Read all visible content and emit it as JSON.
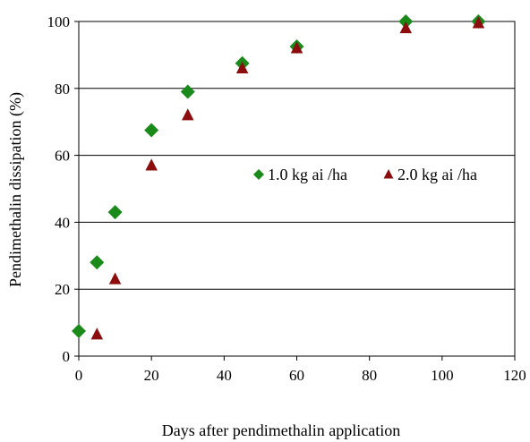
{
  "chart_data": {
    "type": "scatter",
    "title": "",
    "xlabel": "Days after pendimethalin application",
    "ylabel": "Pendimethalin dissipation (%)",
    "xlim": [
      0,
      120
    ],
    "ylim": [
      0,
      100
    ],
    "xticks": [
      0,
      20,
      40,
      60,
      80,
      100,
      120
    ],
    "yticks": [
      0,
      20,
      40,
      60,
      80,
      100
    ],
    "grid": "horizontal",
    "legend_position": "center-right",
    "series": [
      {
        "name": "1.0 kg ai /ha",
        "marker": "diamond",
        "color": "#1a8a1a",
        "x": [
          0,
          5,
          10,
          20,
          30,
          45,
          60,
          90,
          110
        ],
        "y": [
          7.5,
          28,
          43,
          67.5,
          79,
          87.5,
          92.5,
          100,
          100
        ]
      },
      {
        "name": "2.0 kg ai /ha",
        "marker": "triangle",
        "color": "#8b0d0d",
        "x": [
          5,
          10,
          20,
          30,
          45,
          60,
          90,
          110
        ],
        "y": [
          6.5,
          23,
          57,
          72,
          86,
          92,
          98,
          99.5
        ]
      }
    ]
  }
}
